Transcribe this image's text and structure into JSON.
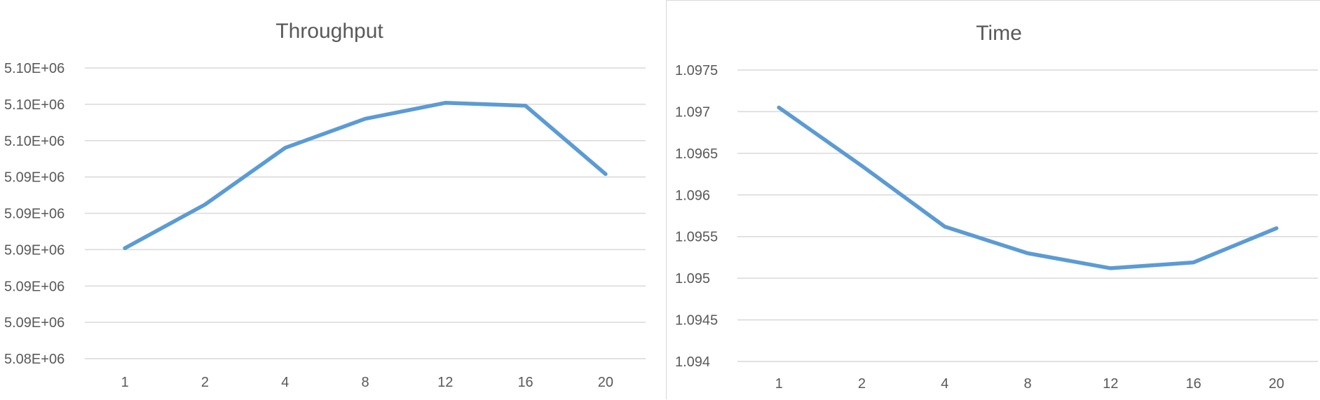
{
  "chart_data": [
    {
      "type": "line",
      "title": "Throughput",
      "categories": [
        "1",
        "2",
        "4",
        "8",
        "12",
        "16",
        "20"
      ],
      "series": [
        {
          "values": [
            5.0876,
            5.0906,
            5.0945,
            5.0965,
            5.0976,
            5.0974,
            5.0927
          ]
        }
      ],
      "y_tick_labels": [
        "5.08E+06",
        "5.09E+06",
        "5.09E+06",
        "5.09E+06",
        "5.09E+06",
        "5.09E+06",
        "5.10E+06",
        "5.10E+06",
        "5.10E+06"
      ],
      "ylim": [
        5.08,
        5.1
      ],
      "ytick_step": 0.0025,
      "y_scale_note": "millions",
      "grid": true,
      "color": "#5b9bd5"
    },
    {
      "type": "line",
      "title": "Time",
      "categories": [
        "1",
        "2",
        "4",
        "8",
        "12",
        "16",
        "20"
      ],
      "series": [
        {
          "values": [
            1.09705,
            1.09635,
            1.09562,
            1.0953,
            1.09512,
            1.09519,
            1.0956
          ]
        }
      ],
      "y_tick_labels": [
        "1.094",
        "1.0945",
        "1.095",
        "1.0955",
        "1.096",
        "1.0965",
        "1.097",
        "1.0975"
      ],
      "ylim": [
        1.094,
        1.0975
      ],
      "ytick_step": 0.0005,
      "grid": true,
      "color": "#5b9bd5"
    }
  ]
}
